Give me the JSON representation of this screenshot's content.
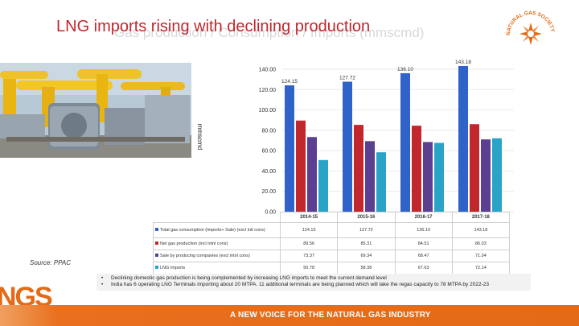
{
  "slide": {
    "title": "LNG imports rising with declining production",
    "ghost_title": "Gas production / Consumption / Imports (mmscmd)",
    "source": "Source: PPAC",
    "logo_text": "NATURAL GAS SOCIETY",
    "ngs_mark": "NGS",
    "footer": "A NEW VOICE FOR THE NATURAL GAS INDUSTRY",
    "bullets": [
      "Declining domestic gas production is being complemented by increasing LNG imports to meet the current demand level",
      "India has 6 operating LNG Terminals importing about 20 MTPA. 11 additional terminals are being planned which will take the regas capacity to 78 MTPA by 2022-23"
    ],
    "colors": {
      "title": "#c0282d",
      "accent": "#e36a16"
    }
  },
  "chart_data": {
    "type": "bar",
    "ylabel": "mmscmd",
    "ylim": [
      0,
      140
    ],
    "yticks": [
      "0.00",
      "20.00",
      "40.00",
      "60.00",
      "80.00",
      "100.00",
      "120.00",
      "140.00"
    ],
    "categories": [
      "2014-15",
      "2015-16",
      "2016-17",
      "2017-18"
    ],
    "series": [
      {
        "name": "Total gas consumption (Imports+ Sale) (excl intl cons)",
        "color": "#2f63c9",
        "values": [
          124.15,
          127.72,
          136.1,
          143.18
        ],
        "labels": [
          "124.15",
          "127.72",
          "136.10",
          "143.18"
        ]
      },
      {
        "name": "Net gas production (incl intnl cons)",
        "color": "#c2272d",
        "values": [
          89.56,
          85.31,
          84.51,
          86.03
        ],
        "labels": [
          "89.56",
          "85.31",
          "84.51",
          "86.03"
        ]
      },
      {
        "name": "Sale by producing companies (excl intnl cons)",
        "color": "#5b3f91",
        "values": [
          73.37,
          69.34,
          68.47,
          71.04
        ],
        "labels": [
          "73.37",
          "69.34",
          "68.47",
          "71.04"
        ]
      },
      {
        "name": "LNG Imports",
        "color": "#2aa4c6",
        "values": [
          50.78,
          58.38,
          67.63,
          72.14
        ],
        "labels": [
          "50.78",
          "58.38",
          "67.63",
          "72.14"
        ]
      }
    ],
    "top_labels": [
      "124.15",
      "127.72",
      "136.10",
      "143.18"
    ]
  }
}
